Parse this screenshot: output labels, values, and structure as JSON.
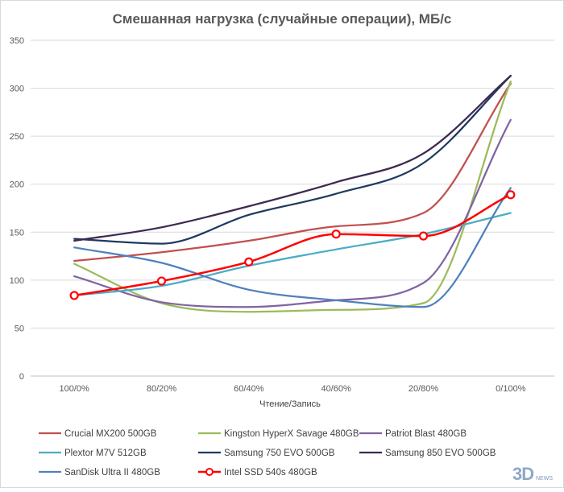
{
  "chart_data": {
    "type": "line",
    "title": "Смешанная нагрузка (случайные операции), МБ/с",
    "xlabel": "Чтение/Запись",
    "ylabel": "",
    "categories": [
      "100/0%",
      "80/20%",
      "60/40%",
      "40/60%",
      "20/80%",
      "0/100%"
    ],
    "ylim": [
      0,
      350
    ],
    "yticks": [
      0,
      50,
      100,
      150,
      200,
      250,
      300,
      350
    ],
    "grid": true,
    "legend_position": "bottom",
    "series": [
      {
        "name": "Crucial MX200 500GB",
        "color": "#c0504d",
        "values": [
          120,
          129,
          141,
          156,
          170,
          305
        ]
      },
      {
        "name": "Kingston HyperX Savage 480GB",
        "color": "#9bbb59",
        "values": [
          117,
          76,
          67,
          69,
          76,
          307
        ]
      },
      {
        "name": "Patriot Blast 480GB",
        "color": "#8064a2",
        "values": [
          104,
          77,
          72,
          79,
          97,
          267
        ]
      },
      {
        "name": "Plextor M7V 512GB",
        "color": "#4bacc6",
        "values": [
          84,
          94,
          115,
          132,
          148,
          170
        ]
      },
      {
        "name": "Samsung 750 EVO 500GB",
        "color": "#1f3a5f",
        "values": [
          143,
          138,
          168,
          190,
          222,
          313
        ]
      },
      {
        "name": "Samsung 850 EVO 500GB",
        "color": "#3d2a4f",
        "values": [
          141,
          155,
          177,
          202,
          232,
          313
        ]
      },
      {
        "name": "SanDisk Ultra II 480GB",
        "color": "#4f81bd",
        "values": [
          134,
          118,
          90,
          79,
          72,
          196
        ]
      },
      {
        "name": "Intel SSD 540s 480GB",
        "color": "#ff0000",
        "values": [
          84,
          99,
          119,
          148,
          146,
          189
        ],
        "markers": true
      }
    ]
  },
  "watermark": {
    "logo": "3D",
    "sub": "NEWS"
  }
}
